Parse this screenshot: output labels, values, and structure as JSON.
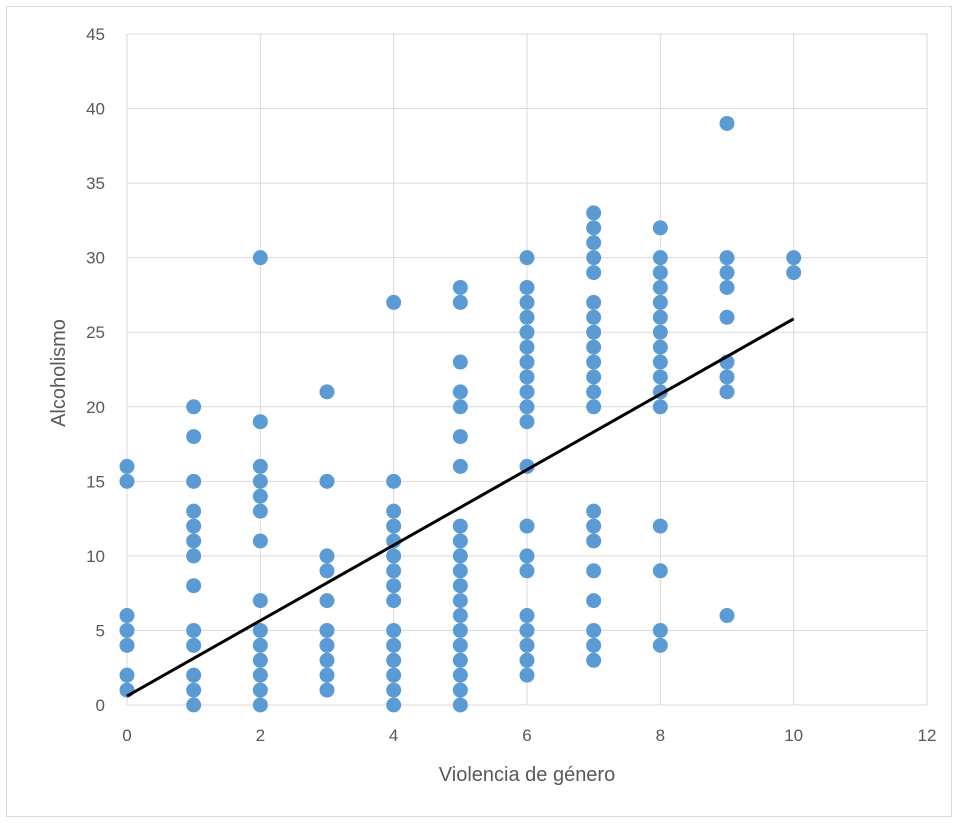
{
  "chart_data": {
    "type": "scatter",
    "title": "",
    "xlabel": "Violencia de género",
    "ylabel": "Alcoholismo",
    "xlim": [
      0,
      12
    ],
    "ylim": [
      0,
      45
    ],
    "x_ticks": [
      "0",
      "2",
      "4",
      "6",
      "8",
      "10",
      "12"
    ],
    "y_ticks": [
      "0",
      "5",
      "10",
      "15",
      "20",
      "25",
      "30",
      "35",
      "40",
      "45"
    ],
    "grid": true,
    "legend": "none",
    "marker_color": "#5b9bd5",
    "trendline_color": "#000000",
    "series": [
      {
        "points": [
          [
            0,
            1
          ],
          [
            0,
            2
          ],
          [
            0,
            4
          ],
          [
            0,
            5
          ],
          [
            0,
            6
          ],
          [
            0,
            15
          ],
          [
            0,
            16
          ],
          [
            1,
            0
          ],
          [
            1,
            1
          ],
          [
            1,
            2
          ],
          [
            1,
            4
          ],
          [
            1,
            5
          ],
          [
            1,
            8
          ],
          [
            1,
            10
          ],
          [
            1,
            11
          ],
          [
            1,
            12
          ],
          [
            1,
            13
          ],
          [
            1,
            15
          ],
          [
            1,
            18
          ],
          [
            1,
            20
          ],
          [
            2,
            0
          ],
          [
            2,
            1
          ],
          [
            2,
            2
          ],
          [
            2,
            3
          ],
          [
            2,
            4
          ],
          [
            2,
            5
          ],
          [
            2,
            7
          ],
          [
            2,
            11
          ],
          [
            2,
            13
          ],
          [
            2,
            14
          ],
          [
            2,
            15
          ],
          [
            2,
            16
          ],
          [
            2,
            19
          ],
          [
            2,
            30
          ],
          [
            3,
            1
          ],
          [
            3,
            2
          ],
          [
            3,
            3
          ],
          [
            3,
            4
          ],
          [
            3,
            5
          ],
          [
            3,
            7
          ],
          [
            3,
            9
          ],
          [
            3,
            10
          ],
          [
            3,
            15
          ],
          [
            3,
            21
          ],
          [
            4,
            0
          ],
          [
            4,
            1
          ],
          [
            4,
            2
          ],
          [
            4,
            3
          ],
          [
            4,
            4
          ],
          [
            4,
            5
          ],
          [
            4,
            7
          ],
          [
            4,
            8
          ],
          [
            4,
            9
          ],
          [
            4,
            10
          ],
          [
            4,
            11
          ],
          [
            4,
            12
          ],
          [
            4,
            13
          ],
          [
            4,
            15
          ],
          [
            4,
            27
          ],
          [
            5,
            0
          ],
          [
            5,
            1
          ],
          [
            5,
            2
          ],
          [
            5,
            3
          ],
          [
            5,
            4
          ],
          [
            5,
            5
          ],
          [
            5,
            6
          ],
          [
            5,
            7
          ],
          [
            5,
            8
          ],
          [
            5,
            9
          ],
          [
            5,
            10
          ],
          [
            5,
            11
          ],
          [
            5,
            12
          ],
          [
            5,
            16
          ],
          [
            5,
            18
          ],
          [
            5,
            20
          ],
          [
            5,
            21
          ],
          [
            5,
            23
          ],
          [
            5,
            27
          ],
          [
            5,
            28
          ],
          [
            6,
            2
          ],
          [
            6,
            3
          ],
          [
            6,
            4
          ],
          [
            6,
            5
          ],
          [
            6,
            6
          ],
          [
            6,
            9
          ],
          [
            6,
            10
          ],
          [
            6,
            12
          ],
          [
            6,
            16
          ],
          [
            6,
            19
          ],
          [
            6,
            20
          ],
          [
            6,
            21
          ],
          [
            6,
            22
          ],
          [
            6,
            23
          ],
          [
            6,
            24
          ],
          [
            6,
            25
          ],
          [
            6,
            26
          ],
          [
            6,
            27
          ],
          [
            6,
            28
          ],
          [
            6,
            30
          ],
          [
            7,
            3
          ],
          [
            7,
            4
          ],
          [
            7,
            5
          ],
          [
            7,
            7
          ],
          [
            7,
            9
          ],
          [
            7,
            11
          ],
          [
            7,
            12
          ],
          [
            7,
            13
          ],
          [
            7,
            20
          ],
          [
            7,
            21
          ],
          [
            7,
            22
          ],
          [
            7,
            23
          ],
          [
            7,
            24
          ],
          [
            7,
            25
          ],
          [
            7,
            26
          ],
          [
            7,
            27
          ],
          [
            7,
            29
          ],
          [
            7,
            30
          ],
          [
            7,
            31
          ],
          [
            7,
            32
          ],
          [
            7,
            33
          ],
          [
            8,
            4
          ],
          [
            8,
            5
          ],
          [
            8,
            9
          ],
          [
            8,
            12
          ],
          [
            8,
            20
          ],
          [
            8,
            21
          ],
          [
            8,
            22
          ],
          [
            8,
            23
          ],
          [
            8,
            24
          ],
          [
            8,
            25
          ],
          [
            8,
            26
          ],
          [
            8,
            27
          ],
          [
            8,
            28
          ],
          [
            8,
            29
          ],
          [
            8,
            30
          ],
          [
            8,
            32
          ],
          [
            9,
            6
          ],
          [
            9,
            21
          ],
          [
            9,
            22
          ],
          [
            9,
            23
          ],
          [
            9,
            26
          ],
          [
            9,
            28
          ],
          [
            9,
            29
          ],
          [
            9,
            30
          ],
          [
            9,
            39
          ],
          [
            10,
            29
          ],
          [
            10,
            30
          ]
        ]
      }
    ],
    "trendline": {
      "x": [
        0,
        10
      ],
      "y": [
        0.6,
        25.9
      ]
    }
  }
}
